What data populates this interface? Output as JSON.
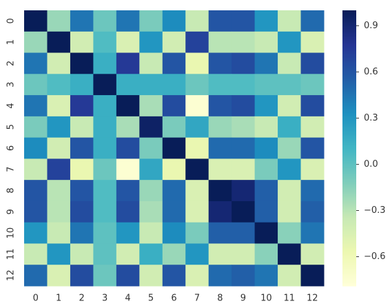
{
  "chart_data": {
    "type": "heatmap",
    "colormap": "YlGnBu",
    "x_categories": [
      "0",
      "1",
      "2",
      "3",
      "4",
      "5",
      "6",
      "7",
      "8",
      "9",
      "10",
      "11",
      "12"
    ],
    "y_categories": [
      "0",
      "1",
      "2",
      "3",
      "4",
      "5",
      "6",
      "7",
      "8",
      "9",
      "10",
      "11",
      "12"
    ],
    "values": [
      [
        1,
        -0.2,
        0.45,
        -0.05,
        0.45,
        -0.1,
        0.35,
        -0.35,
        0.6,
        0.6,
        0.3,
        -0.35,
        0.5
      ],
      [
        -0.2,
        1,
        -0.4,
        0.05,
        -0.45,
        0.3,
        -0.4,
        0.7,
        -0.3,
        -0.3,
        -0.35,
        0.3,
        -0.45
      ],
      [
        0.45,
        -0.4,
        1,
        0.15,
        0.75,
        -0.35,
        0.6,
        -0.55,
        0.6,
        0.65,
        0.45,
        -0.35,
        0.65
      ],
      [
        -0.05,
        0.05,
        0.15,
        1,
        0.15,
        0.15,
        0.15,
        -0.05,
        0.05,
        0.05,
        0,
        0,
        -0.05
      ],
      [
        0.45,
        -0.45,
        0.75,
        0.15,
        1,
        -0.25,
        0.65,
        -0.75,
        0.6,
        0.65,
        0.3,
        -0.4,
        0.65
      ],
      [
        -0.1,
        0.3,
        -0.35,
        0.15,
        -0.25,
        0.95,
        -0.1,
        0.2,
        -0.2,
        -0.25,
        -0.35,
        0.15,
        -0.4
      ],
      [
        0.35,
        -0.4,
        0.6,
        0.15,
        0.65,
        -0.1,
        1,
        -0.55,
        0.5,
        0.5,
        0.35,
        -0.2,
        0.6
      ],
      [
        -0.35,
        0.7,
        -0.55,
        -0.05,
        -0.75,
        0.2,
        -0.55,
        1,
        -0.45,
        -0.45,
        -0.1,
        0.3,
        -0.45
      ],
      [
        0.6,
        -0.3,
        0.6,
        0.05,
        0.6,
        -0.2,
        0.5,
        -0.45,
        1,
        0.9,
        0.55,
        -0.4,
        0.5
      ],
      [
        0.6,
        -0.3,
        0.65,
        0.05,
        0.65,
        -0.25,
        0.5,
        -0.45,
        0.9,
        1,
        0.55,
        -0.4,
        0.55
      ],
      [
        0.3,
        -0.35,
        0.45,
        0,
        0.3,
        -0.35,
        0.35,
        -0.1,
        0.55,
        0.55,
        1,
        -0.15,
        0.45
      ],
      [
        -0.35,
        0.3,
        -0.35,
        0,
        -0.4,
        0.15,
        -0.2,
        0.3,
        -0.4,
        -0.4,
        -0.15,
        1,
        -0.4
      ],
      [
        0.5,
        -0.45,
        0.65,
        -0.05,
        0.65,
        -0.4,
        0.6,
        -0.45,
        0.5,
        0.55,
        0.45,
        -0.4,
        1
      ]
    ],
    "ylim": [
      -0.79,
      1.0
    ],
    "yticks": [
      {
        "value": -0.6,
        "label": "−0.6"
      },
      {
        "value": -0.3,
        "label": "−0.3"
      },
      {
        "value": 0,
        "label": "0.0"
      },
      0.3,
      0.6,
      0.9
    ]
  }
}
